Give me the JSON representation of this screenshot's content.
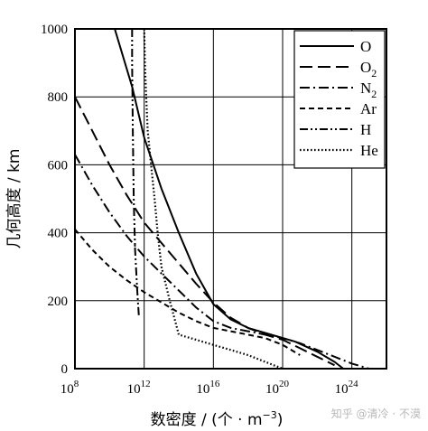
{
  "chart_data": {
    "type": "line",
    "xlabel": "数密度 / (个 · m",
    "xlabel_sup": "−3",
    "xlabel_close": ")",
    "ylabel": "几何高度 / km",
    "x_scale": "log",
    "xlim": [
      100000000.0,
      1e+26
    ],
    "ylim": [
      0,
      1000
    ],
    "x_ticks": [
      {
        "value": 100000000.0,
        "base": "10",
        "exp": "8"
      },
      {
        "value": 1000000000000.0,
        "base": "10",
        "exp": "12"
      },
      {
        "value": 1e+16,
        "base": "10",
        "exp": "16"
      },
      {
        "value": 1e+20,
        "base": "10",
        "exp": "20"
      },
      {
        "value": 1e+24,
        "base": "10",
        "exp": "24"
      }
    ],
    "y_ticks": [
      0,
      200,
      400,
      600,
      800,
      1000
    ],
    "grid": true,
    "legend_position": "top-right",
    "series": [
      {
        "name": "O",
        "sub": "",
        "dash": "solid",
        "x": [
          20000000000.0,
          200000000000.0,
          1000000000000.0,
          10000000000000.0,
          100000000000000.0,
          1000000000000000.0,
          1e+16,
          1e+17,
          1e+18,
          1e+19,
          5e+20,
          1e+22,
          1e+23,
          3.2e+23
        ],
        "y": [
          1000,
          830,
          680,
          530,
          400,
          280,
          190,
          145,
          120,
          105,
          80,
          50,
          20,
          0
        ]
      },
      {
        "name": "O",
        "sub": "2",
        "dash": "long-dash",
        "x": [
          100000000.0,
          1000000000.0,
          10000000000.0,
          100000000000.0,
          1000000000000.0,
          10000000000000.0,
          100000000000000.0,
          1000000000000000.0,
          1e+16,
          1e+17,
          1e+18,
          1e+19,
          1e+20,
          1e+21,
          1e+22,
          1e+23
        ],
        "y": [
          800,
          700,
          600,
          510,
          430,
          370,
          310,
          250,
          195,
          150,
          120,
          100,
          85,
          60,
          35,
          10
        ]
      },
      {
        "name": "N",
        "sub": "2",
        "dash": "dash-dot",
        "x": [
          100000000.0,
          1000000000.0,
          10000000000.0,
          100000000000.0,
          1000000000000.0,
          10000000000000.0,
          100000000000000.0,
          1000000000000000.0,
          1e+16,
          1e+17,
          1e+18,
          1e+19,
          1e+20,
          1e+21,
          1e+22,
          1e+23,
          1e+24,
          1e+25
        ],
        "y": [
          630,
          540,
          460,
          390,
          330,
          280,
          230,
          180,
          140,
          120,
          110,
          100,
          90,
          75,
          55,
          35,
          15,
          0
        ]
      },
      {
        "name": "Ar",
        "sub": "",
        "dash": "short-dash",
        "x": [
          100000000.0,
          1000000000.0,
          10000000000.0,
          100000000000.0,
          1000000000000.0,
          10000000000000.0,
          100000000000000.0,
          1000000000000000.0,
          1e+16,
          1e+17,
          1e+18,
          1e+19,
          1e+20,
          1e+21
        ],
        "y": [
          410,
          350,
          300,
          260,
          225,
          195,
          165,
          140,
          120,
          110,
          100,
          90,
          70,
          40
        ]
      },
      {
        "name": "H",
        "sub": "",
        "dash": "dash-dot-dot",
        "x": [
          200000000000.0,
          200000000000.0,
          220000000000.0,
          250000000000.0,
          300000000000.0,
          400000000000.0,
          500000000000.0
        ],
        "y": [
          1000,
          900,
          700,
          500,
          350,
          230,
          150
        ]
      },
      {
        "name": "He",
        "sub": "",
        "dash": "dotted",
        "x": [
          1000000000000.0,
          1100000000000.0,
          1300000000000.0,
          1600000000000.0,
          2500000000000.0,
          4000000000000.0,
          6000000000000.0,
          10000000000000.0,
          30000000000000.0,
          100000000000000.0,
          1000000000000000.0,
          1e+16,
          1e+17,
          1e+18,
          1e+19,
          1e+20
        ],
        "y": [
          1000,
          900,
          800,
          700,
          600,
          500,
          400,
          300,
          200,
          100,
          85,
          70,
          55,
          40,
          20,
          0
        ]
      }
    ]
  },
  "watermark": "知乎 @清冷 · 不漠"
}
